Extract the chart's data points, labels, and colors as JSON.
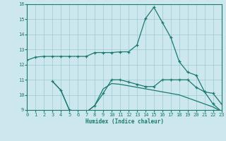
{
  "xlabel": "Humidex (Indice chaleur)",
  "bg_color": "#cce8ee",
  "grid_color": "#9ec8d0",
  "line_color": "#1a7a6e",
  "xlim": [
    0,
    23
  ],
  "ylim": [
    9,
    16
  ],
  "yticks": [
    9,
    10,
    11,
    12,
    13,
    14,
    15,
    16
  ],
  "xticks": [
    0,
    1,
    2,
    3,
    4,
    5,
    6,
    7,
    8,
    9,
    10,
    11,
    12,
    13,
    14,
    15,
    16,
    17,
    18,
    19,
    20,
    21,
    22,
    23
  ],
  "line1_x": [
    0,
    1,
    2,
    3,
    4,
    5,
    6,
    7,
    8,
    9,
    10,
    11,
    12,
    13,
    14,
    15,
    16,
    17,
    18,
    19,
    20,
    21,
    22,
    23
  ],
  "line1_y": [
    12.3,
    12.5,
    12.55,
    12.55,
    12.55,
    12.55,
    12.55,
    12.55,
    12.8,
    12.8,
    12.8,
    12.85,
    12.85,
    13.3,
    15.05,
    15.8,
    14.8,
    13.8,
    12.2,
    11.5,
    11.3,
    10.2,
    10.1,
    9.4
  ],
  "line2_x": [
    3,
    4,
    5,
    6,
    7,
    8,
    9,
    10,
    11,
    12,
    13,
    14,
    15,
    16,
    17,
    18,
    19,
    20,
    21,
    22,
    23
  ],
  "line2_y": [
    10.9,
    10.3,
    9.0,
    8.9,
    8.85,
    9.3,
    10.1,
    11.0,
    11.0,
    10.85,
    10.7,
    10.55,
    10.55,
    11.0,
    11.0,
    11.0,
    11.0,
    10.5,
    10.2,
    9.4,
    8.9
  ],
  "line3_x": [
    3,
    4,
    5,
    6,
    7,
    8,
    9,
    10,
    11,
    12,
    13,
    14,
    15,
    16,
    17,
    18,
    19,
    20,
    21,
    22,
    23
  ],
  "line3_y": [
    10.9,
    10.3,
    9.0,
    8.9,
    8.85,
    9.3,
    10.4,
    10.75,
    10.7,
    10.6,
    10.5,
    10.4,
    10.3,
    10.2,
    10.1,
    10.0,
    9.8,
    9.6,
    9.4,
    9.2,
    8.9
  ]
}
